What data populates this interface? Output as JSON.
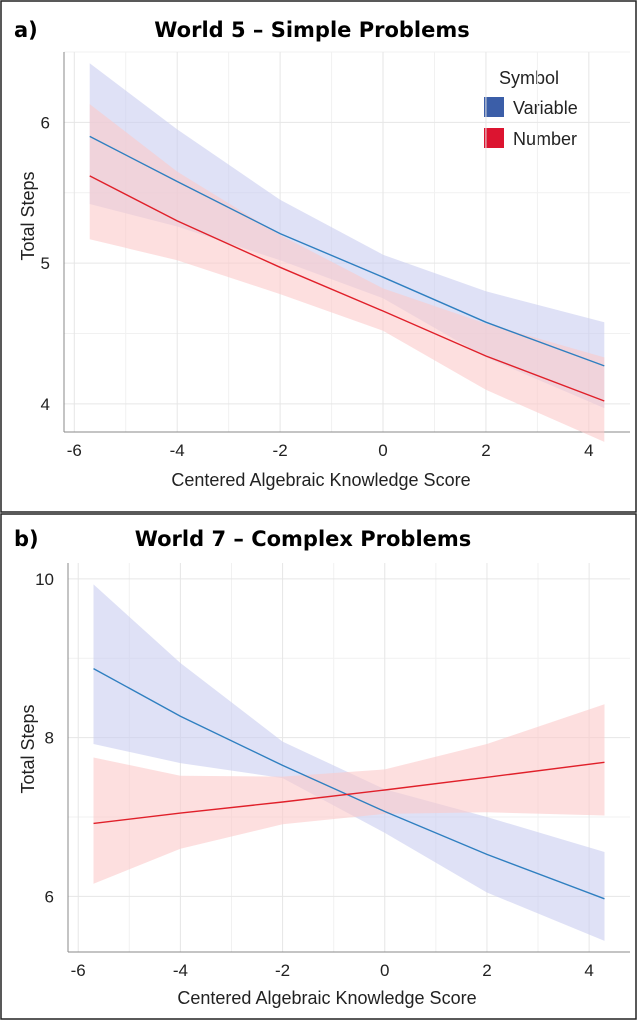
{
  "colors": {
    "variable_line": "#2f7fc0",
    "variable_band": "#c9cdf0",
    "number_line": "#e0202a",
    "number_band": "#fcc9c9",
    "legend_variable": "#3b5ea8",
    "legend_number": "#dc1430"
  },
  "legend": {
    "title": "Symbol",
    "items": [
      "Variable",
      "Number"
    ]
  },
  "chart_data": [
    {
      "type": "line",
      "panel_label": "a)",
      "title": "World 5 – Simple Problems",
      "xlabel": "Centered Algebraic Knowledge Score",
      "ylabel": "Total Steps",
      "xlim": [
        -6.2,
        4.8
      ],
      "ylim": [
        3.8,
        6.5
      ],
      "xticks": [
        -6,
        -4,
        -2,
        0,
        2,
        4
      ],
      "yticks": [
        4,
        5,
        6
      ],
      "legend_position": "top-right",
      "series": [
        {
          "name": "Variable",
          "x": [
            -5.7,
            -4,
            -2,
            0,
            2,
            4.3
          ],
          "y": [
            5.9,
            5.58,
            5.21,
            4.9,
            4.58,
            4.27
          ],
          "lower": [
            5.42,
            5.26,
            5.02,
            4.75,
            4.33,
            3.97
          ],
          "upper": [
            6.42,
            5.95,
            5.45,
            5.06,
            4.8,
            4.58
          ]
        },
        {
          "name": "Number",
          "x": [
            -5.7,
            -4,
            -2,
            0,
            2,
            4.3
          ],
          "y": [
            5.62,
            5.3,
            4.97,
            4.66,
            4.34,
            4.02
          ],
          "lower": [
            5.17,
            5.02,
            4.78,
            4.52,
            4.1,
            3.73
          ],
          "upper": [
            6.13,
            5.65,
            5.2,
            4.82,
            4.57,
            4.33
          ]
        }
      ]
    },
    {
      "type": "line",
      "panel_label": "b)",
      "title": "World 7 – Complex Problems",
      "xlabel": "Centered Algebraic Knowledge Score",
      "ylabel": "Total Steps",
      "xlim": [
        -6.2,
        4.8
      ],
      "ylim": [
        5.3,
        10.2
      ],
      "xticks": [
        -6,
        -4,
        -2,
        0,
        2,
        4
      ],
      "yticks": [
        6,
        8,
        10
      ],
      "series": [
        {
          "name": "Variable",
          "x": [
            -5.7,
            -4,
            -2,
            0,
            2,
            4.3
          ],
          "y": [
            8.87,
            8.27,
            7.65,
            7.07,
            6.53,
            5.97
          ],
          "lower": [
            7.92,
            7.68,
            7.49,
            6.8,
            6.05,
            5.44
          ],
          "upper": [
            9.93,
            8.94,
            7.95,
            7.35,
            7.0,
            6.56
          ]
        },
        {
          "name": "Number",
          "x": [
            -5.7,
            -4,
            -2,
            0,
            2,
            4.3
          ],
          "y": [
            6.92,
            7.05,
            7.19,
            7.34,
            7.5,
            7.69
          ],
          "lower": [
            6.16,
            6.6,
            6.91,
            7.04,
            7.06,
            7.02
          ],
          "upper": [
            7.75,
            7.52,
            7.51,
            7.6,
            7.92,
            8.42
          ]
        }
      ]
    }
  ]
}
